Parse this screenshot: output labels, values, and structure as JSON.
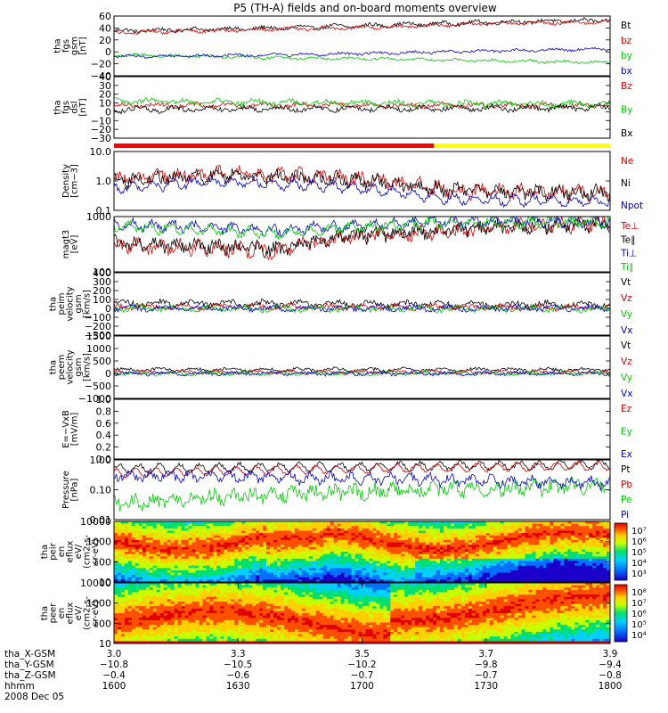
{
  "title": "P5 (TH-A) fields and on-board moments overview",
  "chart_data": [
    {
      "id": "fgs_gsm",
      "type": "line",
      "ylabel": [
        "tha",
        "fgs",
        "gsm",
        "[nT]"
      ],
      "yticks": [
        "60",
        "40",
        "20",
        "0",
        "−20",
        "−40"
      ],
      "ylim": [
        -40,
        60
      ],
      "series": [
        {
          "name": "Bt",
          "color": "#000000",
          "base": 42,
          "amp": 6,
          "x": [
            3.0,
            3.3,
            3.5,
            3.7,
            3.9
          ],
          "y": [
            35,
            40,
            45,
            50,
            53
          ]
        },
        {
          "name": "bz",
          "color": "#dd0000",
          "base": 40,
          "amp": 5,
          "x": [
            3.0,
            3.3,
            3.5,
            3.7,
            3.9
          ],
          "y": [
            32,
            38,
            42,
            48,
            50
          ]
        },
        {
          "name": "by",
          "color": "#00cc00",
          "base": -8,
          "amp": 4,
          "x": [
            3.0,
            3.3,
            3.5,
            3.7,
            3.9
          ],
          "y": [
            -5,
            -10,
            -12,
            -15,
            -18
          ]
        },
        {
          "name": "bx",
          "color": "#0000cc",
          "base": -5,
          "amp": 4,
          "x": [
            3.0,
            3.3,
            3.5,
            3.7,
            3.9
          ],
          "y": [
            -8,
            -5,
            -2,
            2,
            5
          ]
        }
      ]
    },
    {
      "id": "fgs_dsl",
      "type": "line",
      "ylabel": [
        "tha",
        "fgs",
        "dsl",
        "[nT]"
      ],
      "yticks": [
        "40",
        "30",
        "20",
        "10",
        "0",
        "−10",
        "−20",
        "−30"
      ],
      "ylim": [
        -35,
        40
      ],
      "series": [
        {
          "name": "Bz",
          "color": "#dd0000",
          "base": 5,
          "amp": 5,
          "x": [
            3.0,
            3.9
          ],
          "y": [
            5,
            5
          ]
        },
        {
          "name": "By",
          "color": "#00cc00",
          "base": 8,
          "amp": 6,
          "x": [
            3.0,
            3.9
          ],
          "y": [
            10,
            6
          ]
        },
        {
          "name": "Bx",
          "color": "#000000",
          "base": 0,
          "amp": 6,
          "x": [
            3.0,
            3.9
          ],
          "y": [
            0,
            2
          ]
        }
      ]
    },
    {
      "id": "density",
      "type": "line",
      "ylabel": [
        "Density",
        "[cm−3]"
      ],
      "yticks": [
        "10.0",
        "1.0",
        "0.1"
      ],
      "yscale": "log",
      "ylim": [
        0.1,
        12
      ],
      "series": [
        {
          "name": "Ne",
          "color": "#dd0000",
          "base": 0.5,
          "amp": 0.4,
          "x": [
            3.0,
            3.2,
            3.4,
            3.6,
            3.9
          ],
          "y": [
            1.2,
            2.0,
            1.5,
            0.5,
            0.4
          ]
        },
        {
          "name": "Ni",
          "color": "#000000",
          "base": 0.5,
          "amp": 0.4,
          "x": [
            3.0,
            3.2,
            3.4,
            3.6,
            3.9
          ],
          "y": [
            1.0,
            1.8,
            1.3,
            0.5,
            0.4
          ]
        },
        {
          "name": "Npot",
          "color": "#0000cc",
          "base": 0.3,
          "amp": 0.2,
          "x": [
            3.0,
            3.2,
            3.4,
            3.6,
            3.9
          ],
          "y": [
            0.6,
            1.0,
            0.7,
            0.25,
            0.2
          ]
        }
      ]
    },
    {
      "id": "temperature",
      "type": "line",
      "ylabel": [
        "magt3",
        "[eV]"
      ],
      "yticks": [
        "1000",
        "100"
      ],
      "yscale": "log",
      "ylim": [
        40,
        8000
      ],
      "series": [
        {
          "name": "Te⊥",
          "color": "#dd0000",
          "base": 800,
          "amp": 0.5,
          "x": [
            3.0,
            3.3,
            3.6,
            3.9
          ],
          "y": [
            500,
            300,
            2000,
            4000
          ]
        },
        {
          "name": "Te∥",
          "color": "#000000",
          "base": 800,
          "amp": 0.5,
          "x": [
            3.0,
            3.3,
            3.6,
            3.9
          ],
          "y": [
            600,
            350,
            2200,
            4200
          ]
        },
        {
          "name": "Ti⊥",
          "color": "#0000cc",
          "base": 3000,
          "amp": 0.3,
          "x": [
            3.0,
            3.3,
            3.6,
            3.9
          ],
          "y": [
            4000,
            2000,
            5000,
            5000
          ]
        },
        {
          "name": "Ti∥",
          "color": "#00cc00",
          "base": 3000,
          "amp": 0.3,
          "x": [
            3.0,
            3.3,
            3.6,
            3.9
          ],
          "y": [
            3000,
            1500,
            4500,
            4800
          ]
        }
      ]
    },
    {
      "id": "peim_velocity",
      "type": "line",
      "ylabel": [
        "tha",
        "peim",
        "velocity",
        "gsm",
        "[km/s]"
      ],
      "yticks": [
        "400",
        "300",
        "200",
        "100",
        "0",
        "−100",
        "−200",
        "−300"
      ],
      "ylim": [
        -300,
        400
      ],
      "series": [
        {
          "name": "Vt",
          "color": "#000000",
          "base": 60,
          "amp": 60,
          "x": [
            3.0,
            3.9
          ],
          "y": [
            60,
            40
          ]
        },
        {
          "name": "Vz",
          "color": "#dd0000",
          "base": 20,
          "amp": 50,
          "x": [
            3.0,
            3.9
          ],
          "y": [
            20,
            10
          ]
        },
        {
          "name": "Vy",
          "color": "#00cc00",
          "base": 0,
          "amp": 50,
          "x": [
            3.0,
            3.9
          ],
          "y": [
            0,
            -10
          ]
        },
        {
          "name": "Vx",
          "color": "#0000cc",
          "base": 0,
          "amp": 50,
          "x": [
            3.0,
            3.9
          ],
          "y": [
            0,
            0
          ]
        }
      ]
    },
    {
      "id": "peem_velocity",
      "type": "line",
      "ylabel": [
        "tha",
        "peem",
        "velocity",
        "gsm",
        "[km/s]"
      ],
      "yticks": [
        "1500",
        "1000",
        "500",
        "0",
        "−500",
        "−1000"
      ],
      "ylim": [
        -1000,
        1500
      ],
      "series": [
        {
          "name": "Vt",
          "color": "#000000",
          "base": 150,
          "amp": 120,
          "x": [
            3.0,
            3.9
          ],
          "y": [
            150,
            150
          ]
        },
        {
          "name": "Vz",
          "color": "#dd0000",
          "base": 50,
          "amp": 120,
          "x": [
            3.0,
            3.9
          ],
          "y": [
            50,
            50
          ]
        },
        {
          "name": "Vy",
          "color": "#00cc00",
          "base": 0,
          "amp": 120,
          "x": [
            3.0,
            3.9
          ],
          "y": [
            0,
            0
          ]
        },
        {
          "name": "Vx",
          "color": "#0000cc",
          "base": 0,
          "amp": 120,
          "x": [
            3.0,
            3.9
          ],
          "y": [
            0,
            0
          ]
        }
      ]
    },
    {
      "id": "efield",
      "type": "line",
      "ylabel": [
        "E=−VxB",
        "[mV/m]"
      ],
      "yticks": [
        "1.0",
        "0.8",
        "0.6",
        "0.4",
        "0.2",
        "0.0"
      ],
      "ylim": [
        0,
        1
      ],
      "series": [
        {
          "name": "Ez",
          "color": "#dd0000"
        },
        {
          "name": "Ey",
          "color": "#00cc00"
        },
        {
          "name": "Ex",
          "color": "#0000cc"
        }
      ]
    },
    {
      "id": "pressure",
      "type": "line",
      "ylabel": [
        "Pressure",
        "[nPa]"
      ],
      "yticks": [
        "1.00",
        "0.10",
        "0.01"
      ],
      "yscale": "log",
      "ylim": [
        0.01,
        2
      ],
      "series": [
        {
          "name": "Pt",
          "color": "#000000",
          "base": 1.0,
          "amp": 0.15,
          "x": [
            3.0,
            3.9
          ],
          "y": [
            0.9,
            1.3
          ]
        },
        {
          "name": "Pb",
          "color": "#dd0000",
          "base": 0.9,
          "amp": 0.1,
          "x": [
            3.0,
            3.9
          ],
          "y": [
            0.6,
            1.2
          ]
        },
        {
          "name": "Pe",
          "color": "#00cc00",
          "base": 0.05,
          "amp": 0.5,
          "x": [
            3.0,
            3.9
          ],
          "y": [
            0.04,
            0.2
          ]
        },
        {
          "name": "Pi",
          "color": "#0000cc",
          "base": 0.3,
          "amp": 0.3,
          "x": [
            3.0,
            3.9
          ],
          "y": [
            0.5,
            0.25
          ]
        }
      ]
    },
    {
      "id": "ion_spectrogram",
      "type": "heatmap",
      "ylabel": [
        "tha",
        "peir",
        "en",
        "eflux",
        "eV/",
        "(cm2-s-",
        "sr-eV)"
      ],
      "yticks": [
        "10000",
        "1000",
        "100",
        "10"
      ],
      "yscale": "log",
      "ylim": [
        10,
        20000
      ],
      "colorbar": {
        "ticks": [
          "10⁷",
          "10⁶",
          "10⁵",
          "10⁴",
          "10³"
        ],
        "range": [
          3,
          7.4
        ]
      }
    },
    {
      "id": "electron_spectrogram",
      "type": "heatmap",
      "ylabel": [
        "tha",
        "peer",
        "en",
        "eflux",
        "eV/",
        "(cm2-s-",
        "sr-eV)"
      ],
      "yticks": [
        "10000",
        "1000",
        "100",
        "10"
      ],
      "yscale": "log",
      "ylim": [
        10,
        20000
      ],
      "colorbar": {
        "ticks": [
          "10⁸",
          "10⁷",
          "10⁶",
          "10⁵",
          "10⁴"
        ],
        "range": [
          3.6,
          8.4
        ]
      }
    }
  ],
  "xaxis": {
    "rows": [
      {
        "label": "tha_X-GSM",
        "values": [
          "3.0",
          "3.3",
          "3.5",
          "3.7",
          "3.9"
        ]
      },
      {
        "label": "tha_Y-GSM",
        "values": [
          "−10.8",
          "−10.5",
          "−10.2",
          "−9.8",
          "−9.4"
        ]
      },
      {
        "label": "tha_Z-GSM",
        "values": [
          "−0.4",
          "−0.6",
          "−0.7",
          "−0.7",
          "−0.8"
        ]
      },
      {
        "label": "hhmm",
        "values": [
          "1600",
          "1630",
          "1700",
          "1730",
          "1800"
        ]
      }
    ],
    "date": "2008 Dec 05"
  },
  "mode_bar": {
    "colors": [
      "#ff0000",
      "#ffff00"
    ],
    "switch_fraction": 0.645
  }
}
